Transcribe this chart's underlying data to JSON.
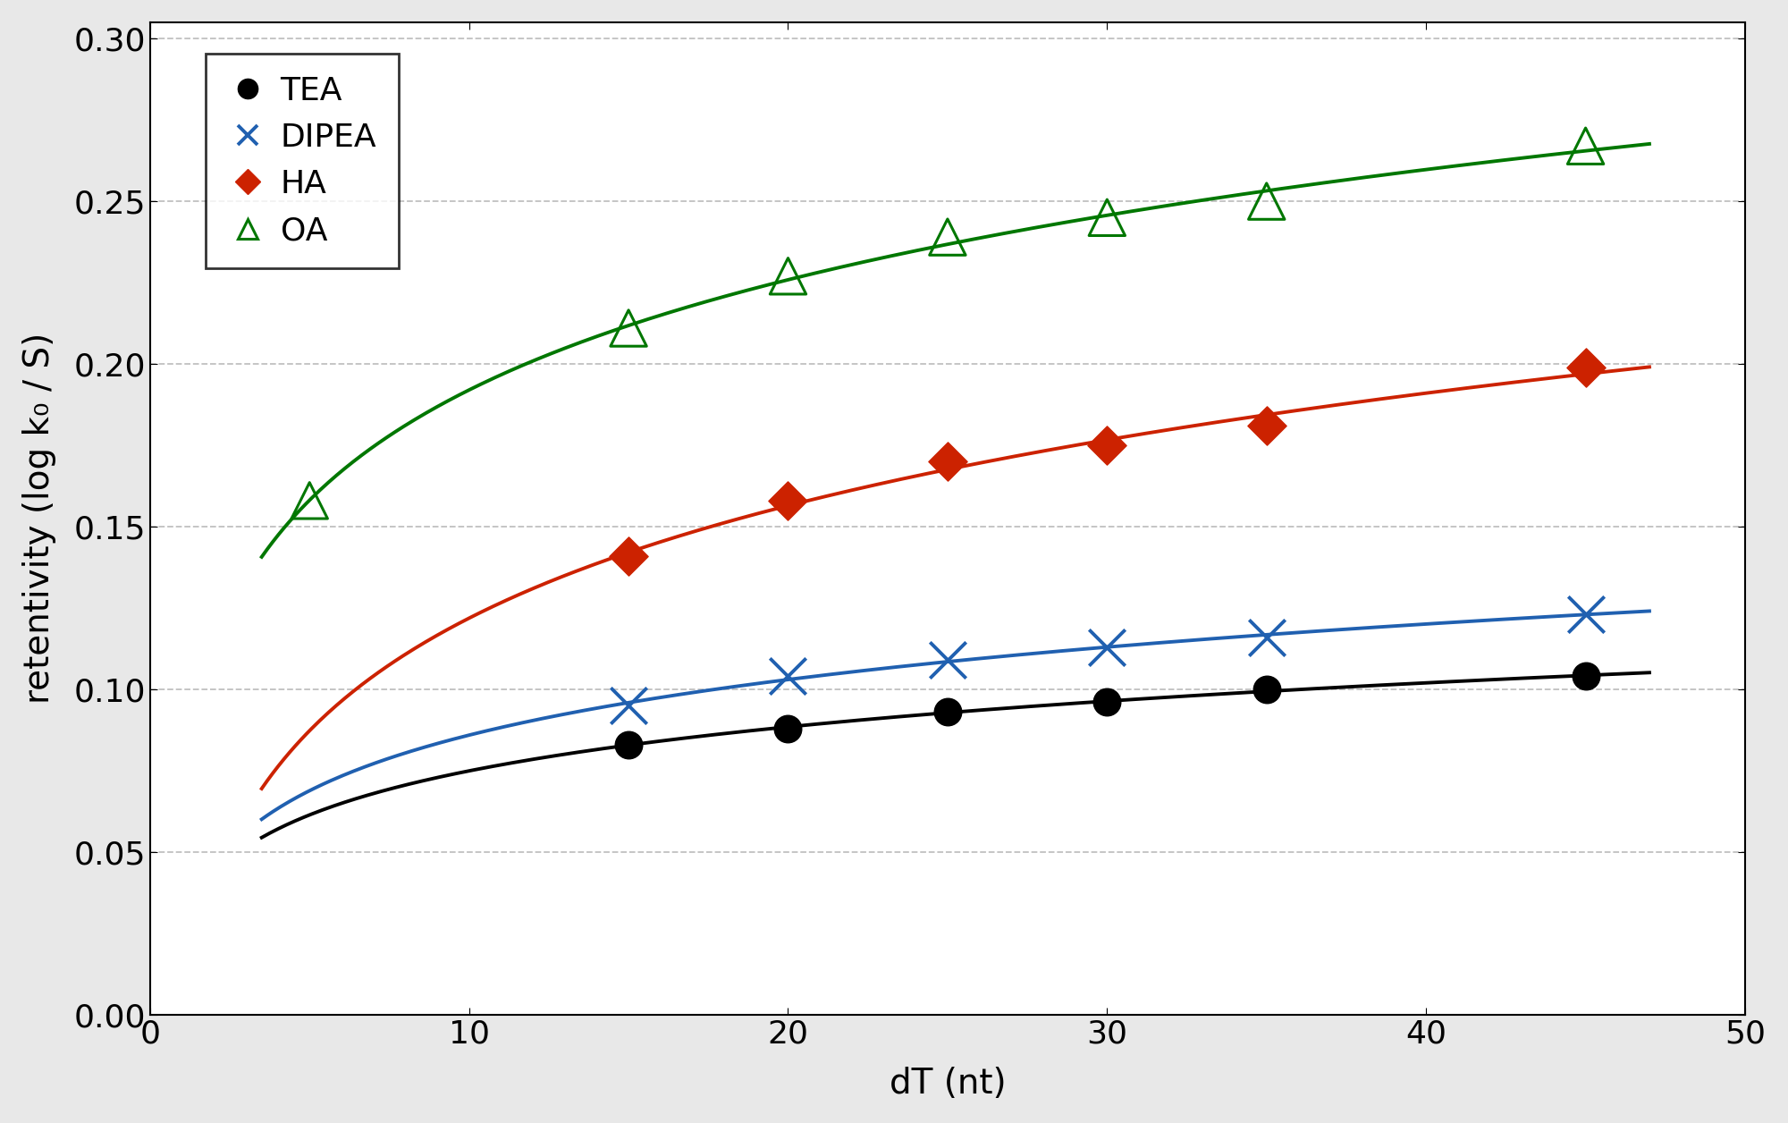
{
  "title": "",
  "xlabel": "dT (nt)",
  "ylabel": "retentivity (log k₀ / S)",
  "xlim": [
    0,
    50
  ],
  "ylim": [
    0.0,
    0.305
  ],
  "yticks": [
    0.0,
    0.05,
    0.1,
    0.15,
    0.2,
    0.25,
    0.3
  ],
  "xticks": [
    0,
    10,
    20,
    30,
    40,
    50
  ],
  "background_color": "#ffffff",
  "outer_background": "#e8e8e8",
  "grid_color": "#c0c0c0",
  "TEA": {
    "color": "#000000",
    "marker": "o",
    "marker_size": 11,
    "label": "TEA",
    "data_x": [
      15,
      20,
      25,
      30,
      35,
      45
    ],
    "data_y": [
      0.083,
      0.088,
      0.093,
      0.096,
      0.1,
      0.104
    ]
  },
  "DIPEA": {
    "color": "#2060b0",
    "marker": "x",
    "marker_size": 13,
    "label": "DIPEA",
    "data_x": [
      15,
      20,
      25,
      30,
      35,
      45
    ],
    "data_y": [
      0.095,
      0.104,
      0.109,
      0.113,
      0.116,
      0.123
    ]
  },
  "HA": {
    "color": "#cc2200",
    "marker": "D",
    "marker_size": 11,
    "label": "HA",
    "data_x": [
      15,
      20,
      25,
      30,
      35,
      45
    ],
    "data_y": [
      0.141,
      0.158,
      0.17,
      0.175,
      0.181,
      0.199
    ]
  },
  "OA": {
    "color": "#007700",
    "marker": "^",
    "marker_size": 13,
    "label": "OA",
    "data_x": [
      5,
      15,
      20,
      25,
      30,
      35,
      45
    ],
    "data_y": [
      0.158,
      0.211,
      0.227,
      0.239,
      0.245,
      0.25,
      0.267
    ]
  },
  "curve_x_start": 3.5,
  "curve_x_end": 47.0,
  "series_order": [
    "TEA",
    "DIPEA",
    "HA",
    "OA"
  ]
}
